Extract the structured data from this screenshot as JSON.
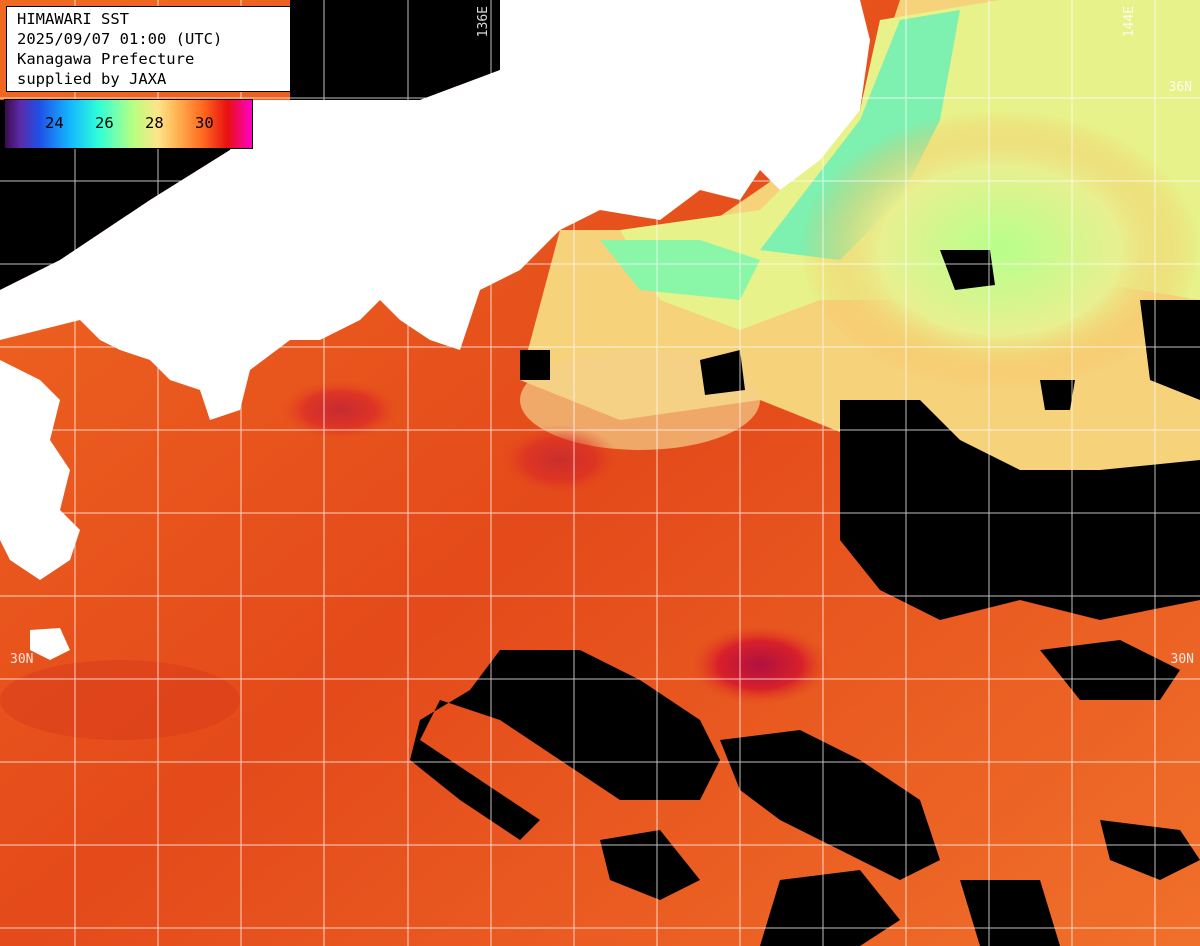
{
  "info": {
    "title": "HIMAWARI SST",
    "datetime": "2025/09/07 01:00 (UTC)",
    "prefecture": "Kanagawa Prefecture",
    "credit": "supplied by JAXA"
  },
  "colorbar": {
    "ticks": [
      "24",
      "26",
      "28",
      "30"
    ]
  },
  "grid_labels": {
    "lon_136": "136E",
    "lon_144": "144E",
    "lat_36": "36N",
    "lat_30_left": "30N",
    "lat_30_right": "30N"
  },
  "colors": {
    "ocean_warm": "#e8561e",
    "land": "#ffffff",
    "cloud": "#000000",
    "cool_water": "#5ef0a8",
    "grid": "#ffffff"
  }
}
